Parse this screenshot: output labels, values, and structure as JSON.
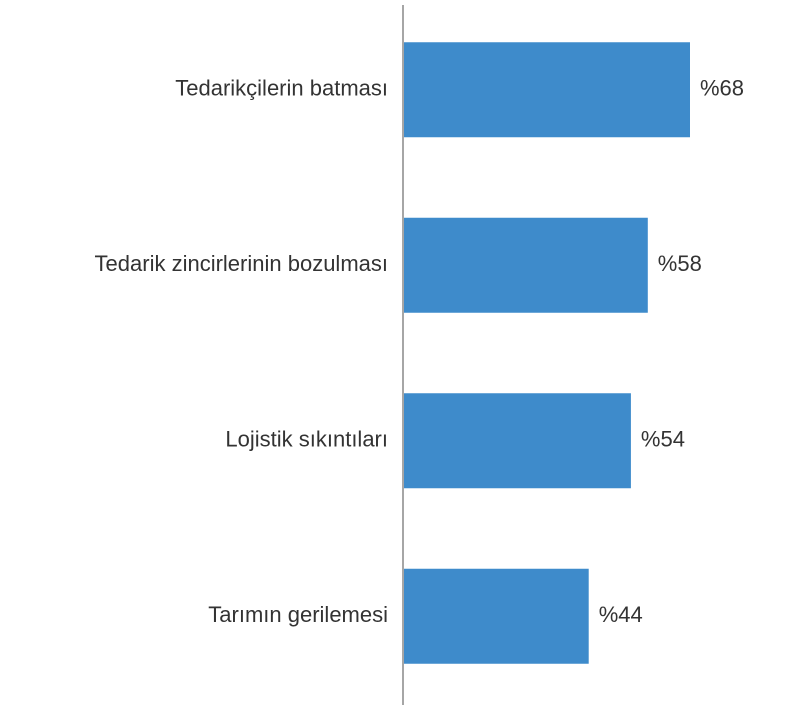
{
  "chart_data": {
    "type": "barh",
    "categories": [
      "Tedarikçilerin batması",
      "Tedarik zincirlerinin bozulması",
      "Lojistik sıkıntıları",
      "Tarımın gerilemesi"
    ],
    "values": [
      68,
      58,
      54,
      44
    ],
    "value_labels": [
      "%68",
      "%58",
      "%54",
      "%44"
    ],
    "color": "#3e8bcb"
  }
}
